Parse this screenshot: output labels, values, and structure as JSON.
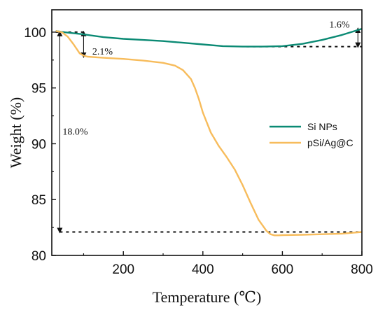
{
  "chart_data": {
    "type": "line",
    "title": "",
    "xlabel": "Temperature (℃)",
    "ylabel": "Weight (%)",
    "xlim": [
      20,
      800
    ],
    "ylim": [
      80,
      102
    ],
    "xticks": [
      200,
      400,
      600,
      800
    ],
    "yticks": [
      80,
      85,
      90,
      95,
      100
    ],
    "xtick_labels": [
      "200",
      "400",
      "600",
      "800"
    ],
    "ytick_labels": [
      "80",
      "85",
      "90",
      "95",
      "100"
    ],
    "grid": false,
    "legend_position": "center-right",
    "series": [
      {
        "name": "Si NPs",
        "color": "#0b8a74",
        "x": [
          30,
          50,
          100,
          150,
          200,
          250,
          300,
          350,
          400,
          450,
          500,
          550,
          600,
          650,
          700,
          750,
          800
        ],
        "y": [
          100.1,
          100.0,
          99.8,
          99.55,
          99.4,
          99.3,
          99.2,
          99.05,
          98.9,
          98.75,
          98.7,
          98.7,
          98.75,
          98.95,
          99.3,
          99.75,
          100.3
        ]
      },
      {
        "name": "pSi/Ag@C",
        "color": "#f7bc5c",
        "x": [
          30,
          45,
          60,
          75,
          90,
          100,
          110,
          150,
          200,
          250,
          300,
          330,
          350,
          370,
          380,
          390,
          400,
          420,
          440,
          460,
          480,
          500,
          520,
          540,
          560,
          570,
          580,
          590,
          600,
          650,
          700,
          750,
          800
        ],
        "y": [
          100.1,
          100.0,
          99.6,
          98.9,
          98.1,
          97.9,
          97.8,
          97.7,
          97.6,
          97.45,
          97.25,
          97.0,
          96.6,
          95.8,
          95.0,
          94.0,
          92.8,
          91.0,
          89.8,
          88.8,
          87.7,
          86.3,
          84.7,
          83.2,
          82.2,
          81.9,
          81.8,
          81.8,
          81.82,
          81.85,
          81.9,
          81.95,
          82.1
        ]
      }
    ],
    "reference_lines": [
      {
        "name": "si-start-level",
        "y": 100,
        "x": [
          30,
          100
        ]
      },
      {
        "name": "si-min-level",
        "y": 98.7,
        "x": [
          510,
          800
        ]
      },
      {
        "name": "psi-end-level",
        "y": 82.1,
        "x": [
          40,
          800
        ]
      }
    ],
    "arrows": [
      {
        "name": "arrow-2-1",
        "x": 100,
        "y": [
          100,
          97.8
        ]
      },
      {
        "name": "arrow-18-0",
        "x": 40,
        "y": [
          100,
          82.1
        ]
      },
      {
        "name": "arrow-1-6",
        "x": 790,
        "y": [
          100.3,
          98.7
        ]
      }
    ],
    "annotations": [
      {
        "name": "annotation-2-1",
        "text": "2.1%",
        "x": 122,
        "y": 98.0
      },
      {
        "name": "annotation-18-0",
        "text": "18.0%",
        "x": 47,
        "y": 90.8
      },
      {
        "name": "annotation-1-6",
        "text": "1.6%",
        "x": 718,
        "y": 100.4
      }
    ]
  }
}
